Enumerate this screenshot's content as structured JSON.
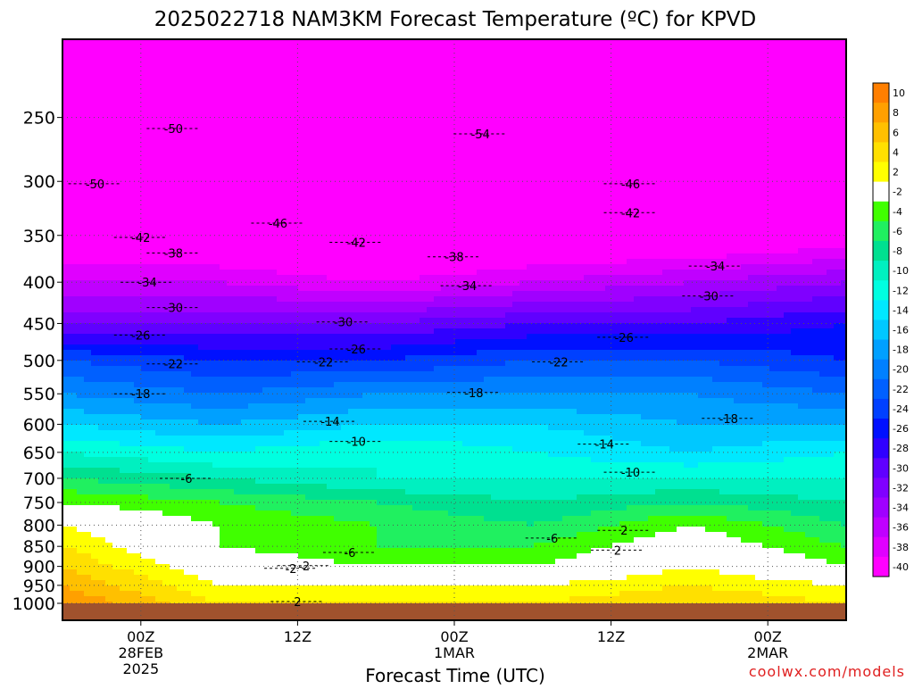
{
  "chart_data": {
    "type": "heatmap",
    "title": "2025022718 NAM3KM Forecast Temperature (ºC) for KPVD",
    "xlabel": "Forecast Time (UTC)",
    "ylabel": "",
    "y_scale": "log-pressure",
    "y_unit": "hPa",
    "ylim": [
      1000,
      200
    ],
    "y_ticks": [
      250,
      300,
      350,
      400,
      450,
      500,
      550,
      600,
      650,
      700,
      750,
      800,
      850,
      900,
      950,
      1000
    ],
    "x_hours_range": [
      -6,
      54
    ],
    "x_ticks": [
      {
        "hour": 0,
        "label": [
          "00Z",
          "28FEB",
          "2025"
        ]
      },
      {
        "hour": 12,
        "label": [
          "12Z"
        ]
      },
      {
        "hour": 24,
        "label": [
          "00Z",
          "1MAR"
        ]
      },
      {
        "hour": 36,
        "label": [
          "12Z"
        ]
      },
      {
        "hour": 48,
        "label": [
          "00Z",
          "2MAR"
        ]
      }
    ],
    "grid": true,
    "legend_placement": "right",
    "colorbar": {
      "labels": [
        "10",
        "8",
        "6",
        "4",
        "2",
        "-2",
        "-4",
        "-6",
        "-8",
        "-10",
        "-12",
        "-14",
        "-16",
        "-18",
        "-20",
        "-22",
        "-24",
        "-26",
        "-28",
        "-30",
        "-32",
        "-34",
        "-36",
        "-38",
        "-40"
      ],
      "colors": [
        "#ff7f00",
        "#ffa000",
        "#ffc000",
        "#ffe000",
        "#ffff00",
        "#ffffff",
        "#40ff00",
        "#20f060",
        "#00e090",
        "#00f0c0",
        "#00ffe0",
        "#00e8ff",
        "#00c8ff",
        "#00a0ff",
        "#0080ff",
        "#0060ff",
        "#0040ff",
        "#0010ff",
        "#3000ff",
        "#6000ff",
        "#8000ff",
        "#a000ff",
        "#c000ff",
        "#e000ff",
        "#ff00ff"
      ]
    },
    "level_temps": [
      {
        "p": 250,
        "t": [
          -50,
          -50,
          -54,
          -54,
          -52,
          -50
        ]
      },
      {
        "p": 300,
        "t": [
          -50,
          -48,
          -46,
          -46,
          -46,
          -46
        ]
      },
      {
        "p": 350,
        "t": [
          -42,
          -42,
          -44,
          -42,
          -42,
          -40
        ]
      },
      {
        "p": 400,
        "t": [
          -36,
          -36,
          -38,
          -36,
          -34,
          -32
        ]
      },
      {
        "p": 450,
        "t": [
          -30,
          -30,
          -30,
          -28,
          -28,
          -26
        ]
      },
      {
        "p": 500,
        "t": [
          -22,
          -24,
          -24,
          -22,
          -22,
          -24
        ]
      },
      {
        "p": 550,
        "t": [
          -18,
          -20,
          -18,
          -18,
          -18,
          -20
        ]
      },
      {
        "p": 600,
        "t": [
          -14,
          -16,
          -14,
          -14,
          -16,
          -16
        ]
      },
      {
        "p": 650,
        "t": [
          -10,
          -12,
          -10,
          -12,
          -14,
          -12
        ]
      },
      {
        "p": 700,
        "t": [
          -6,
          -8,
          -10,
          -10,
          -10,
          -10
        ]
      },
      {
        "p": 750,
        "t": [
          -2,
          -4,
          -6,
          -8,
          -6,
          -8
        ]
      },
      {
        "p": 800,
        "t": [
          2,
          -2,
          -4,
          -6,
          -2,
          -6
        ]
      },
      {
        "p": 850,
        "t": [
          4,
          -2,
          -4,
          -4,
          0,
          -4
        ]
      },
      {
        "p": 900,
        "t": [
          6,
          0,
          -2,
          -2,
          2,
          -2
        ]
      },
      {
        "p": 950,
        "t": [
          8,
          2,
          2,
          2,
          4,
          2
        ]
      },
      {
        "p": 1000,
        "t": [
          10,
          4,
          4,
          4,
          6,
          4
        ]
      }
    ],
    "profile_hours": [
      -6,
      6,
      18,
      30,
      42,
      54
    ],
    "contour_labels": [
      {
        "text": "-50",
        "hour": 2.5,
        "p": 258
      },
      {
        "text": "-50",
        "hour": -3.5,
        "p": 302
      },
      {
        "text": "-54",
        "hour": 26,
        "p": 262
      },
      {
        "text": "-46",
        "hour": 37.5,
        "p": 302
      },
      {
        "text": "-46",
        "hour": 10.5,
        "p": 338
      },
      {
        "text": "-42",
        "hour": 37.5,
        "p": 328
      },
      {
        "text": "-42",
        "hour": 0,
        "p": 352
      },
      {
        "text": "-42",
        "hour": 16.5,
        "p": 357
      },
      {
        "text": "-38",
        "hour": 2.5,
        "p": 368
      },
      {
        "text": "-38",
        "hour": 24,
        "p": 372
      },
      {
        "text": "-34",
        "hour": 44,
        "p": 382
      },
      {
        "text": "-34",
        "hour": 0.5,
        "p": 400
      },
      {
        "text": "-34",
        "hour": 25,
        "p": 404
      },
      {
        "text": "-30",
        "hour": 2.5,
        "p": 430
      },
      {
        "text": "-30",
        "hour": 43.5,
        "p": 416
      },
      {
        "text": "-30",
        "hour": 15.5,
        "p": 448
      },
      {
        "text": "-26",
        "hour": 0,
        "p": 465
      },
      {
        "text": "-26",
        "hour": 16.5,
        "p": 484
      },
      {
        "text": "-26",
        "hour": 37,
        "p": 468
      },
      {
        "text": "-22",
        "hour": 2.5,
        "p": 505
      },
      {
        "text": "-22",
        "hour": 14,
        "p": 502
      },
      {
        "text": "-22",
        "hour": 32,
        "p": 502
      },
      {
        "text": "-18",
        "hour": 0,
        "p": 550
      },
      {
        "text": "-18",
        "hour": 25.5,
        "p": 548
      },
      {
        "text": "-18",
        "hour": 45,
        "p": 590
      },
      {
        "text": "-14",
        "hour": 14.5,
        "p": 595
      },
      {
        "text": "-14",
        "hour": 35.5,
        "p": 635
      },
      {
        "text": "-10",
        "hour": 16.5,
        "p": 630
      },
      {
        "text": "-10",
        "hour": 37.5,
        "p": 688
      },
      {
        "text": "-6",
        "hour": 3.5,
        "p": 700
      },
      {
        "text": "-6",
        "hour": 31.5,
        "p": 830
      },
      {
        "text": "-6",
        "hour": 16,
        "p": 865
      },
      {
        "text": "2",
        "hour": 37,
        "p": 812
      },
      {
        "text": "2",
        "hour": 36.5,
        "p": 859
      },
      {
        "text": "-2",
        "hour": 12.5,
        "p": 898
      },
      {
        "text": "-2",
        "hour": 11.5,
        "p": 905
      },
      {
        "text": "2",
        "hour": 12,
        "p": 995
      }
    ]
  },
  "credit": "coolwx.com/models",
  "colors": {
    "ground": "#a0522d",
    "freezing_line": "#e0207a",
    "contour": "#000000",
    "grid": "#555555",
    "credit": "#e02020"
  }
}
